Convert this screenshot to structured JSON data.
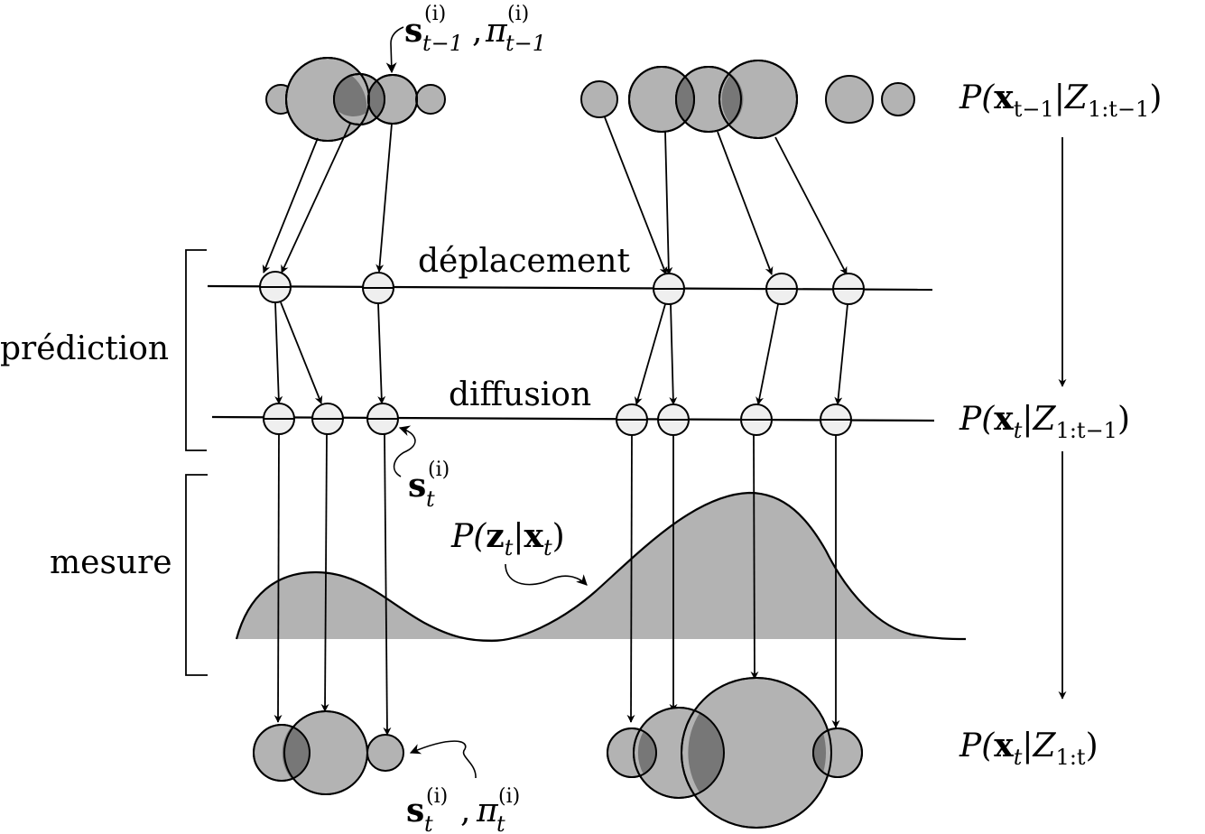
{
  "labels": {
    "prediction": "prédiction",
    "mesure": "mesure",
    "deplacement": "déplacement",
    "diffusion": "diffusion"
  },
  "distributions": {
    "prior": {
      "P": "P(",
      "x": "x",
      "x_sub": "t−1",
      "bar": "|",
      "Z": "Z",
      "Z_sub": "1:t−1",
      "close": ")"
    },
    "predicted": {
      "P": "P(",
      "x": "x",
      "x_sub": "t",
      "bar": "|",
      "Z": "Z",
      "Z_sub": "1:t−1",
      "close": ")"
    },
    "posterior": {
      "P": "P(",
      "x": "x",
      "x_sub": "t",
      "bar": "|",
      "Z": "Z",
      "Z_sub": "1:t",
      "close": ")"
    },
    "likelihood": {
      "P": "P(",
      "z": "z",
      "z_sub": "t",
      "bar": "|",
      "x": "x",
      "x_sub": "t",
      "close": ")"
    }
  },
  "annotations": {
    "prev_sample": {
      "s": "s",
      "s_sub": "t−1",
      "sup": "(i)",
      "comma": ",",
      "pi": "π",
      "pi_sub": "t−1"
    },
    "pred_sample": {
      "s": "s",
      "s_sub": "t",
      "sup": "(i)"
    },
    "post_sample": {
      "s": "s",
      "s_sub": "t",
      "sup": "(i)",
      "comma": ",",
      "pi": "π",
      "pi_sub": "t"
    }
  },
  "colors": {
    "particle_fill": "#b3b3b3",
    "particle_overlap": "#777777",
    "small_node_fill": "#efefef",
    "likelihood_fill": "#b3b3b3",
    "stroke": "#000000"
  }
}
